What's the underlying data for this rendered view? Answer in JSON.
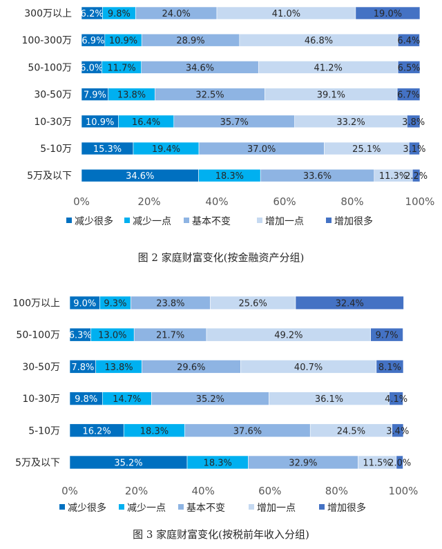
{
  "legend": [
    "减少很多",
    "减少一点",
    "基本不变",
    "增加一点",
    "增加很多"
  ],
  "colors": [
    "#0070C0",
    "#00B0F0",
    "#8EB4E3",
    "#C5D9F1",
    "#4472C4"
  ],
  "label_colors": [
    "#ffffff",
    "#262626",
    "#262626",
    "#262626",
    "#262626"
  ],
  "chart_data": [
    {
      "type": "bar",
      "orientation": "horizontal",
      "stacked": "percent",
      "categories": [
        "300万以上",
        "100-300万",
        "50-100万",
        "30-50万",
        "10-30万",
        "5-10万",
        "5万及以下"
      ],
      "series": [
        {
          "name": "减少很多",
          "values": [
            6.2,
            6.9,
            6.0,
            7.9,
            10.9,
            15.3,
            34.6
          ]
        },
        {
          "name": "减少一点",
          "values": [
            9.8,
            10.9,
            11.7,
            13.8,
            16.4,
            19.4,
            18.3
          ]
        },
        {
          "name": "基本不变",
          "values": [
            24.0,
            28.9,
            34.6,
            32.5,
            35.7,
            37.0,
            33.6
          ]
        },
        {
          "name": "增加一点",
          "values": [
            41.0,
            46.8,
            41.2,
            39.1,
            33.2,
            25.1,
            11.3
          ]
        },
        {
          "name": "增加很多",
          "values": [
            19.0,
            6.4,
            6.5,
            6.7,
            3.8,
            3.1,
            2.2
          ]
        }
      ],
      "xlim": [
        0,
        100
      ],
      "x_ticks": [
        "0%",
        "20%",
        "40%",
        "60%",
        "80%",
        "100%"
      ],
      "legend_position": "bottom",
      "caption": "图 2 家庭财富变化(按金融资产分组)"
    },
    {
      "type": "bar",
      "orientation": "horizontal",
      "stacked": "percent",
      "categories": [
        "100万以上",
        "50-100万",
        "30-50万",
        "10-30万",
        "5-10万",
        "5万及以下"
      ],
      "series": [
        {
          "name": "减少很多",
          "values": [
            9.0,
            6.3,
            7.8,
            9.8,
            16.2,
            35.2
          ]
        },
        {
          "name": "减少一点",
          "values": [
            9.3,
            13.0,
            13.8,
            14.7,
            18.3,
            18.3
          ]
        },
        {
          "name": "基本不变",
          "values": [
            23.8,
            21.7,
            29.6,
            35.2,
            37.6,
            32.9
          ]
        },
        {
          "name": "增加一点",
          "values": [
            25.6,
            49.2,
            40.7,
            36.1,
            24.5,
            11.5
          ]
        },
        {
          "name": "增加很多",
          "values": [
            32.4,
            9.7,
            8.1,
            4.1,
            3.4,
            2.0
          ]
        }
      ],
      "xlim": [
        0,
        100
      ],
      "x_ticks": [
        "0%",
        "20%",
        "40%",
        "60%",
        "80%",
        "100%"
      ],
      "legend_position": "bottom",
      "caption": "图 3 家庭财富变化(按税前年收入分组)"
    }
  ]
}
